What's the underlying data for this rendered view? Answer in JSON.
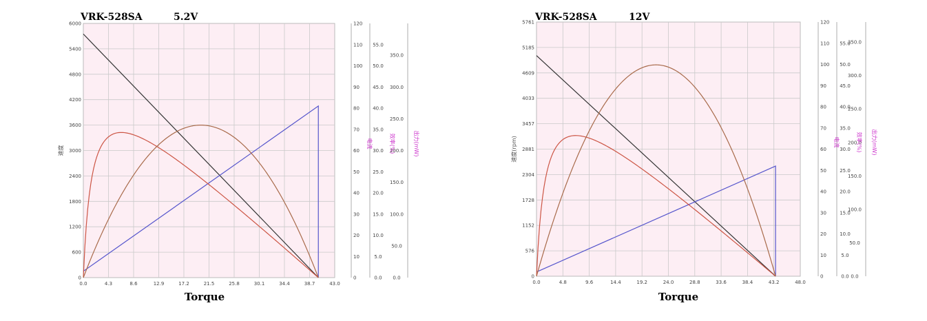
{
  "chart_data": [
    {
      "type": "line",
      "title_model": "VRK-528SA",
      "title_voltage": "5.2V",
      "xlabel": "Torque",
      "xlim": [
        0,
        43
      ],
      "x_ticks": [
        "0.0",
        "4.3",
        "8.6",
        "12.9",
        "17.2",
        "21.5",
        "25.8",
        "30.1",
        "34.4",
        "38.7",
        "43.0"
      ],
      "ylim_speed": [
        0,
        6000
      ],
      "y_speed_ticks": [
        "0",
        "600",
        "1200",
        "1800",
        "2400",
        "3000",
        "3600",
        "4200",
        "4800",
        "5400",
        "6000"
      ],
      "ylabel_speed": "速度",
      "ylim_current": [
        0,
        120
      ],
      "y_current_ticks": [
        "0",
        "10",
        "20",
        "30",
        "40",
        "50",
        "60",
        "70",
        "80",
        "90",
        "100",
        "110",
        "120"
      ],
      "ylabel_current": "电流",
      "ylim_efficiency": [
        0,
        60
      ],
      "y_efficiency_ticks": [
        "0.0",
        "5.0",
        "10.0",
        "15.0",
        "20.0",
        "25.0",
        "30.0",
        "35.0",
        "40.0",
        "45.0",
        "50.0",
        "55.0"
      ],
      "ylabel_efficiency": "效率(%)",
      "ylim_power": [
        0,
        400
      ],
      "y_power_ticks": [
        "0.0",
        "50.0",
        "100.0",
        "150.0",
        "200.0",
        "250.0",
        "300.0",
        "350.0"
      ],
      "ylabel_power": "出力(mW)",
      "stall_torque": 40.2,
      "no_load_speed": 5750,
      "no_load_current": 3,
      "stall_current": 81,
      "max_efficiency": 34.2,
      "max_efficiency_torque": 5.9,
      "max_power": 240,
      "max_power_torque": 20.1,
      "series": [
        {
          "axis": "speed",
          "x": [
            0,
            40.2
          ],
          "values": [
            5750,
            0
          ]
        },
        {
          "axis": "current",
          "x": [
            0,
            40.2
          ],
          "values": [
            3,
            81
          ]
        },
        {
          "axis": "efficiency"
        },
        {
          "axis": "power"
        }
      ],
      "colors": {
        "speed": "#333333",
        "current": "#5555cc",
        "efficiency": "#cc5544",
        "power": "#a86a4a"
      }
    },
    {
      "type": "line",
      "title_model": "VRK-528SA",
      "title_voltage": "12V",
      "xlabel": "Torque",
      "xlim": [
        0,
        48
      ],
      "x_ticks": [
        "0.0",
        "4.8",
        "9.6",
        "14.4",
        "19.2",
        "24.0",
        "28.8",
        "33.6",
        "38.4",
        "43.2",
        "48.0"
      ],
      "ylim_speed": [
        0,
        5761
      ],
      "y_speed_ticks": [
        "0",
        "576",
        "1152",
        "1728",
        "2304",
        "2881",
        "3457",
        "4033",
        "4609",
        "5185",
        "5761"
      ],
      "ylabel_speed": "速度(rpm)",
      "ylim_current": [
        0,
        120
      ],
      "y_current_ticks": [
        "0",
        "10",
        "20",
        "30",
        "40",
        "50",
        "60",
        "70",
        "80",
        "90",
        "100",
        "110",
        "120"
      ],
      "ylabel_current": "电流",
      "ylim_efficiency": [
        0,
        60
      ],
      "y_efficiency_ticks": [
        "0.0",
        "5.0",
        "10.0",
        "15.0",
        "20.0",
        "25.0",
        "30.0",
        "35.0",
        "40.0",
        "45.0",
        "50.0",
        "55.0"
      ],
      "ylabel_efficiency": "效率(%)",
      "ylim_power": [
        0,
        380
      ],
      "y_power_ticks": [
        "0.0",
        "50.0",
        "100.0",
        "150.0",
        "200.0",
        "250.0",
        "300.0",
        "350.0"
      ],
      "ylabel_power": "出力(mW)",
      "stall_torque": 43.5,
      "no_load_speed": 5000,
      "no_load_current": 2,
      "stall_current": 52,
      "max_efficiency": 33.2,
      "max_efficiency_torque": 6.9,
      "max_power": 316,
      "max_power_torque": 21.8,
      "series": [
        {
          "axis": "speed",
          "x": [
            0,
            43.5
          ],
          "values": [
            5000,
            0
          ]
        },
        {
          "axis": "current",
          "x": [
            0,
            43.5
          ],
          "values": [
            2,
            52
          ]
        },
        {
          "axis": "efficiency"
        },
        {
          "axis": "power"
        }
      ],
      "colors": {
        "speed": "#333333",
        "current": "#5555cc",
        "efficiency": "#cc5544",
        "power": "#a86a4a"
      }
    }
  ]
}
